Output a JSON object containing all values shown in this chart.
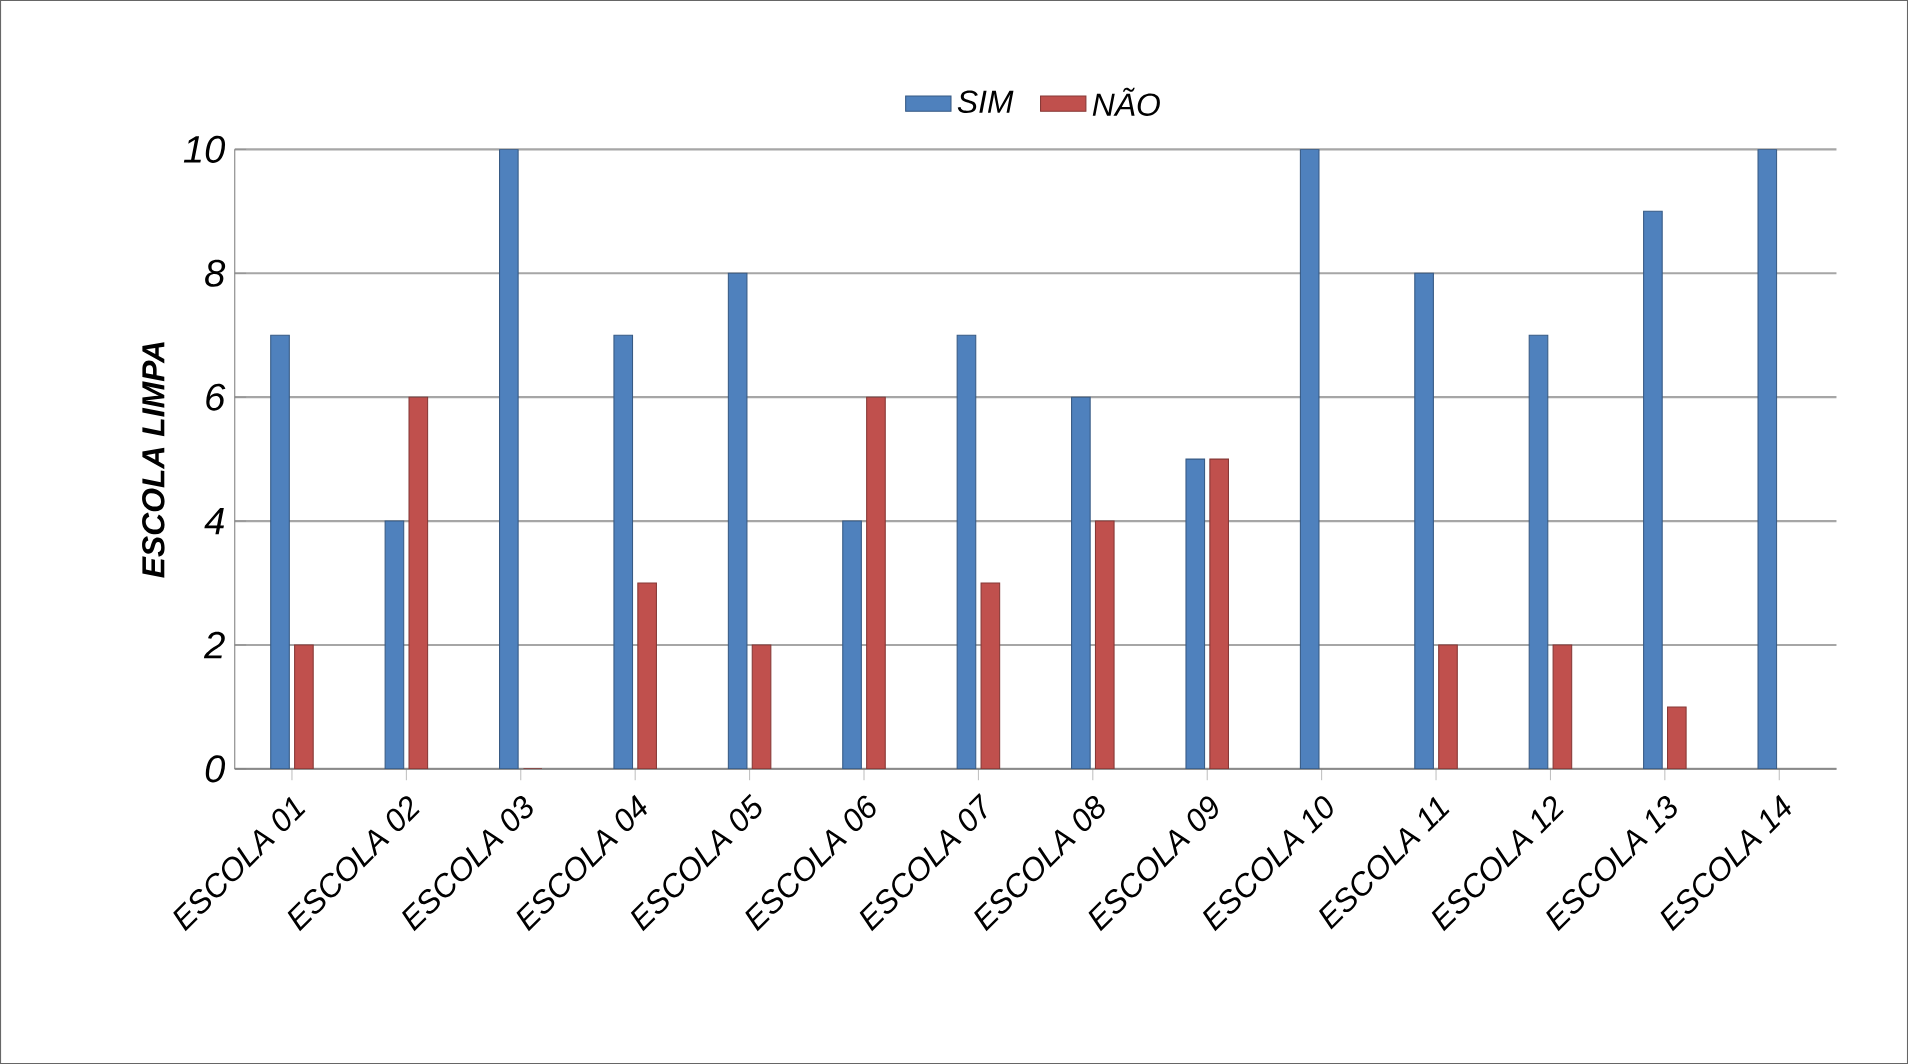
{
  "chart_data": {
    "type": "bar",
    "ylabel": "ESCOLA LIMPA",
    "categories": [
      "ESCOLA 01",
      "ESCOLA 02",
      "ESCOLA 03",
      "ESCOLA 04",
      "ESCOLA 05",
      "ESCOLA 06",
      "ESCOLA 07",
      "ESCOLA 08",
      "ESCOLA 09",
      "ESCOLA 10",
      "ESCOLA 11",
      "ESCOLA 12",
      "ESCOLA 13",
      "ESCOLA 14"
    ],
    "series": [
      {
        "name": "SIM",
        "color": "#4f81bd",
        "values": [
          7,
          4,
          10,
          7,
          8,
          4,
          7,
          6,
          5,
          10,
          8,
          7,
          9,
          10
        ]
      },
      {
        "name": "NÃO",
        "color": "#c0504d",
        "values": [
          2,
          6,
          0,
          3,
          2,
          6,
          3,
          4,
          5,
          null,
          2,
          2,
          1,
          null
        ]
      }
    ],
    "ylim": [
      0,
      10
    ],
    "yticks": [
      0,
      2,
      4,
      6,
      8,
      10
    ],
    "grid": "y",
    "legend": "top"
  }
}
